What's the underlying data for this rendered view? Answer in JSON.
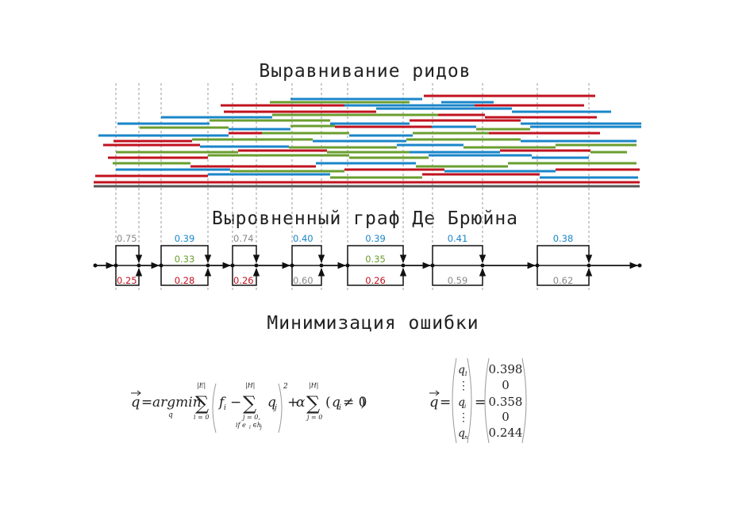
{
  "headings": {
    "alignment": "Выравнивание ридов",
    "graph": "Выровненный граф Де Брюйна",
    "optimization": "Минимизация ошибки"
  },
  "colors": {
    "blue": "#1a86c9",
    "green": "#6a9e2f",
    "red": "#c1121f",
    "gray": "#888888",
    "black": "#111111"
  },
  "graph_labels": [
    {
      "top": "0.75",
      "top_color": "gray",
      "bottom": "0.25",
      "bottom_color": "red"
    },
    {
      "top": "0.39",
      "top_color": "blue",
      "middle": "0.33",
      "middle_color": "green",
      "bottom": "0.28",
      "bottom_color": "red"
    },
    {
      "top": "0.74",
      "top_color": "gray",
      "bottom": "0.26",
      "bottom_color": "red"
    },
    {
      "top": "0.40",
      "top_color": "blue",
      "bottom": "0.60",
      "bottom_color": "gray"
    },
    {
      "top": "0.39",
      "top_color": "blue",
      "middle": "0.35",
      "middle_color": "green",
      "bottom": "0.26",
      "bottom_color": "red"
    },
    {
      "top": "0.41",
      "top_color": "blue",
      "bottom": "0.59",
      "bottom_color": "gray"
    },
    {
      "top": "0.38",
      "top_color": "blue",
      "bottom": "0.62",
      "bottom_color": "gray"
    }
  ],
  "formula": {
    "q": "q",
    "eq": "=",
    "argmin": "argmin",
    "argmin_sub": "q",
    "sum1_top": "|E|",
    "sum1_bottom": "i = 0",
    "f_i": "f",
    "f_sub": "i",
    "minus": "−",
    "sum2_top": "|H|",
    "sum2_bottom1": "j = 0,",
    "sum2_bottom2": "if e",
    "sum2_bottom3": "i",
    "sum2_bottom4": "∈h",
    "sum2_bottom5": "j",
    "q_j": "q",
    "q_j_sub": "j",
    "square": "2",
    "plus": "+",
    "alpha": "α",
    "sum3_top": "|H|",
    "sum3_bottom": "j = 0",
    "indicator_q": "q",
    "indicator_sub": "i",
    "indicator_rest": "≠ 0"
  },
  "solution": {
    "q": "q",
    "eq": "=",
    "left": [
      {
        "text": "q",
        "sub": "1",
        "color": "blue"
      },
      {
        "text": "⋮",
        "sub": "",
        "color": "black"
      },
      {
        "text": "q",
        "sub": "i",
        "color": "green"
      },
      {
        "text": "⋮",
        "sub": "",
        "color": "black"
      },
      {
        "text": "q",
        "sub": "n",
        "color": "red"
      }
    ],
    "right": [
      {
        "text": "0.398",
        "color": "blue"
      },
      {
        "text": "0",
        "color": "black"
      },
      {
        "text": "0.358",
        "color": "green"
      },
      {
        "text": "0",
        "color": "black"
      },
      {
        "text": "0.244",
        "color": "red"
      }
    ]
  }
}
